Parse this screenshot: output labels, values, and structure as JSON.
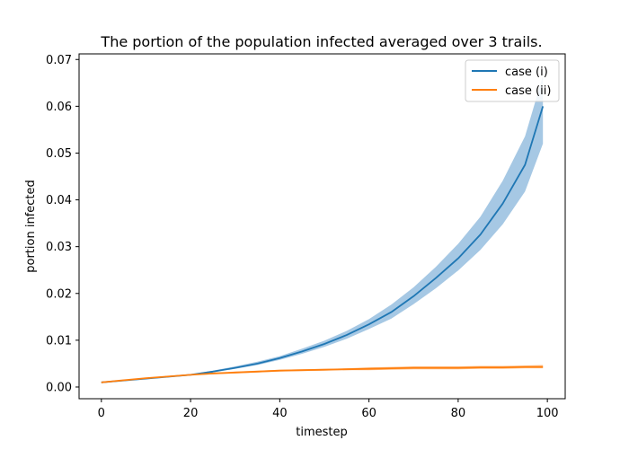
{
  "chart_data": {
    "type": "line",
    "title": "The portion of the population infected averaged over 3 trails.",
    "xlabel": "timestep",
    "ylabel": "portion infected",
    "xlim": [
      -5,
      104
    ],
    "ylim": [
      -0.0025,
      0.0712
    ],
    "x_ticks": [
      0,
      20,
      40,
      60,
      80,
      100
    ],
    "x_tick_labels": [
      "0",
      "20",
      "40",
      "60",
      "80",
      "100"
    ],
    "y_ticks": [
      0.0,
      0.01,
      0.02,
      0.03,
      0.04,
      0.05,
      0.06,
      0.07
    ],
    "y_tick_labels": [
      "0.00",
      "0.01",
      "0.02",
      "0.03",
      "0.04",
      "0.05",
      "0.06",
      "0.07"
    ],
    "grid": false,
    "legend_position": "top-right",
    "x": [
      0,
      10,
      20,
      25,
      30,
      35,
      40,
      45,
      50,
      55,
      60,
      65,
      70,
      75,
      80,
      85,
      90,
      95,
      99
    ],
    "series": [
      {
        "name": "case (i)",
        "color": "#1f77b4",
        "band_color": "#a6c8e4",
        "values": [
          0.001,
          0.0018,
          0.0026,
          0.0033,
          0.0041,
          0.005,
          0.0062,
          0.0076,
          0.0092,
          0.0111,
          0.0134,
          0.016,
          0.0194,
          0.0233,
          0.0275,
          0.0326,
          0.0392,
          0.0475,
          0.06
        ],
        "lower": [
          0.001,
          0.0017,
          0.0025,
          0.0031,
          0.0039,
          0.0047,
          0.0058,
          0.0071,
          0.0086,
          0.0103,
          0.0124,
          0.0146,
          0.0177,
          0.0211,
          0.0249,
          0.0293,
          0.0348,
          0.0418,
          0.052
        ],
        "upper": [
          0.001,
          0.0019,
          0.0027,
          0.0035,
          0.0044,
          0.0054,
          0.0066,
          0.0082,
          0.0099,
          0.012,
          0.0145,
          0.0176,
          0.0213,
          0.0257,
          0.0306,
          0.0364,
          0.0441,
          0.0536,
          0.0665
        ]
      },
      {
        "name": "case (ii)",
        "color": "#ff7f0e",
        "band_color": "#ffbf86",
        "values": [
          0.001,
          0.0019,
          0.0026,
          0.0029,
          0.0031,
          0.0033,
          0.0035,
          0.0036,
          0.0037,
          0.0038,
          0.0039,
          0.004,
          0.0041,
          0.0041,
          0.0041,
          0.0042,
          0.0042,
          0.0043,
          0.0043
        ],
        "lower": [
          0.001,
          0.0018,
          0.0025,
          0.0027,
          0.0029,
          0.0031,
          0.0033,
          0.0034,
          0.0035,
          0.0036,
          0.0036,
          0.0037,
          0.0038,
          0.0038,
          0.0038,
          0.0039,
          0.0039,
          0.004,
          0.004
        ],
        "upper": [
          0.001,
          0.002,
          0.0027,
          0.0031,
          0.0033,
          0.0035,
          0.0037,
          0.0038,
          0.0039,
          0.004,
          0.0042,
          0.0043,
          0.0044,
          0.0044,
          0.0044,
          0.0045,
          0.0045,
          0.0046,
          0.0047
        ]
      }
    ]
  }
}
